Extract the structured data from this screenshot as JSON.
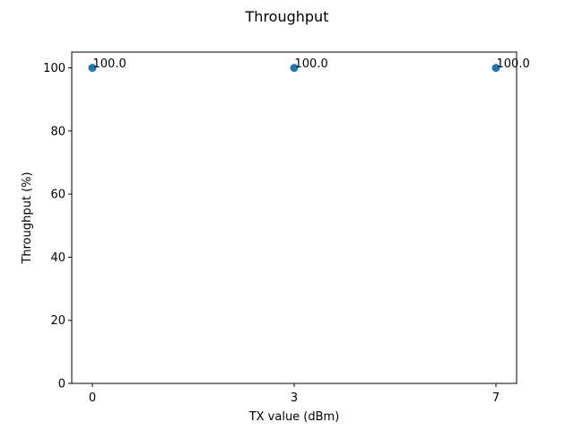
{
  "chart_data": {
    "type": "scatter",
    "title": "Throughput",
    "xlabel": "TX value (dBm)",
    "ylabel": "Throughput (%)",
    "x_categories": [
      "0",
      "3",
      "7"
    ],
    "series": [
      {
        "values": [
          100.0,
          100.0,
          100.0
        ],
        "labels": [
          "100.0",
          "100.0",
          "100.0"
        ],
        "color": "#1f77b4"
      }
    ],
    "ylim": [
      0,
      105
    ],
    "yticks": [
      0,
      20,
      40,
      60,
      80,
      100
    ],
    "grid": false,
    "legend": "none"
  }
}
